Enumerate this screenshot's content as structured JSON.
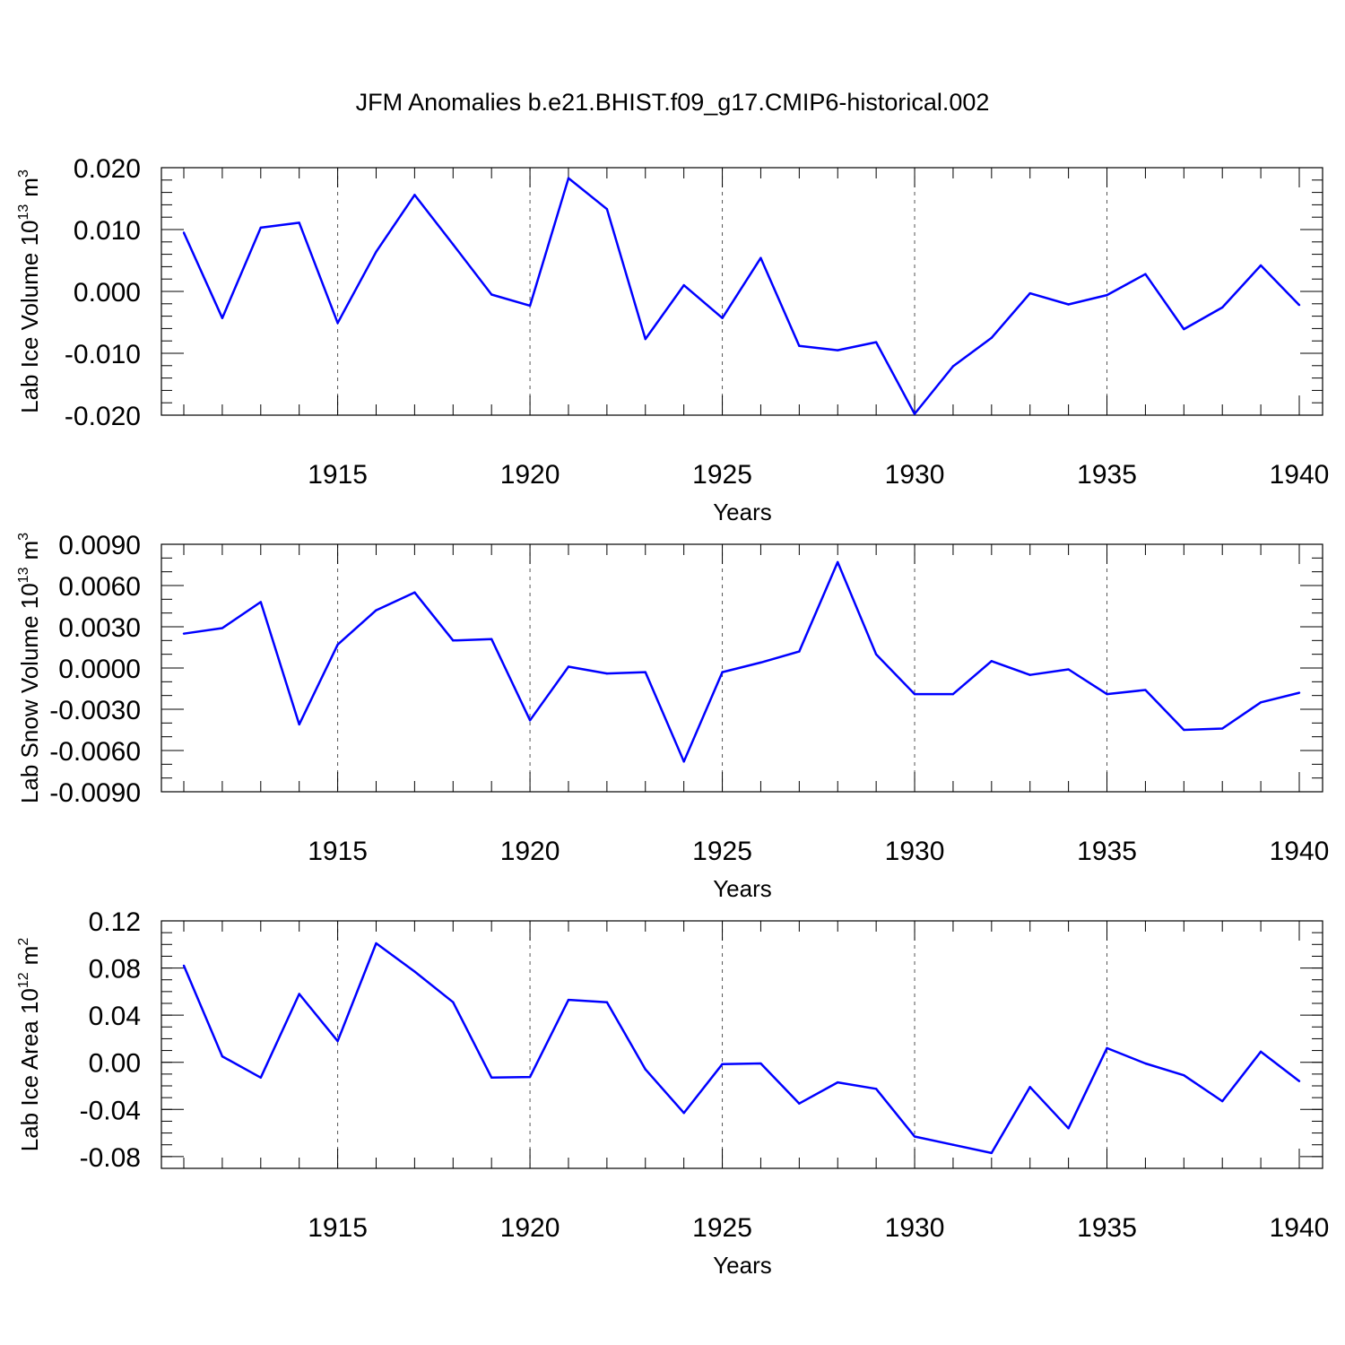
{
  "figure": {
    "title": "JFM Anomalies b.e21.BHIST.f09_g17.CMIP6-historical.002"
  },
  "chart_data": [
    {
      "type": "line",
      "title": "",
      "xlabel": "Years",
      "ylabel": "Lab Ice Volume 10",
      "ylabel_sup": "13",
      "ylabel_unit": "m",
      "ylabel_unit_sup": "3",
      "xlim": [
        1911,
        1940
      ],
      "ylim": [
        -0.02,
        0.02
      ],
      "xticks": [
        1915,
        1920,
        1925,
        1930,
        1935,
        1940
      ],
      "xtick_labels": [
        "1915",
        "1920",
        "1925",
        "1930",
        "1935",
        "1940"
      ],
      "yticks": [
        -0.02,
        -0.01,
        0.0,
        0.01,
        0.02
      ],
      "ytick_labels": [
        "-0.020",
        "-0.010",
        "0.000",
        "0.010",
        "0.020"
      ],
      "y_minor_step": 0.002,
      "grid": "vertical dashed at major x ticks",
      "color": "#0000ff",
      "x": [
        1911,
        1912,
        1913,
        1914,
        1915,
        1916,
        1917,
        1918,
        1919,
        1920,
        1921,
        1922,
        1923,
        1924,
        1925,
        1926,
        1927,
        1928,
        1929,
        1930,
        1931,
        1932,
        1933,
        1934,
        1935,
        1936,
        1937,
        1938,
        1939,
        1940
      ],
      "values": [
        0.0095,
        -0.0043,
        0.0103,
        0.0111,
        -0.0051,
        0.0064,
        0.0156,
        0.0076,
        -0.0005,
        -0.0023,
        0.0183,
        0.0133,
        -0.0077,
        0.001,
        -0.0043,
        0.0054,
        -0.0088,
        -0.0095,
        -0.0082,
        -0.0198,
        -0.0121,
        -0.0075,
        -0.0003,
        -0.0021,
        -0.0006,
        0.0028,
        -0.0061,
        -0.0026,
        0.0042,
        -0.0022
      ]
    },
    {
      "type": "line",
      "title": "",
      "xlabel": "Years",
      "ylabel": "Lab Snow Volume 10",
      "ylabel_sup": "13",
      "ylabel_unit": "m",
      "ylabel_unit_sup": "3",
      "xlim": [
        1911,
        1940
      ],
      "ylim": [
        -0.009,
        0.009
      ],
      "xticks": [
        1915,
        1920,
        1925,
        1930,
        1935,
        1940
      ],
      "xtick_labels": [
        "1915",
        "1920",
        "1925",
        "1930",
        "1935",
        "1940"
      ],
      "yticks": [
        -0.009,
        -0.006,
        -0.003,
        0.0,
        0.003,
        0.006,
        0.009
      ],
      "ytick_labels": [
        "-0.0090",
        "-0.0060",
        "-0.0030",
        "0.0000",
        "0.0030",
        "0.0060",
        "0.0090"
      ],
      "y_minor_step": 0.001,
      "grid": "vertical dashed at major x ticks",
      "color": "#0000ff",
      "x": [
        1911,
        1912,
        1913,
        1914,
        1915,
        1916,
        1917,
        1918,
        1919,
        1920,
        1921,
        1922,
        1923,
        1924,
        1925,
        1926,
        1927,
        1928,
        1929,
        1930,
        1931,
        1932,
        1933,
        1934,
        1935,
        1936,
        1937,
        1938,
        1939,
        1940
      ],
      "values": [
        0.0025,
        0.0029,
        0.0048,
        -0.0041,
        0.0017,
        0.0042,
        0.0055,
        0.002,
        0.0021,
        -0.0038,
        0.0001,
        -0.0004,
        -0.0003,
        -0.0068,
        -0.0003,
        0.0004,
        0.0012,
        0.0077,
        0.001,
        -0.0019,
        -0.0019,
        0.0005,
        -0.0005,
        -0.0001,
        -0.0019,
        -0.0016,
        -0.0045,
        -0.0044,
        -0.0025,
        -0.0018
      ]
    },
    {
      "type": "line",
      "title": "",
      "xlabel": "Years",
      "ylabel": "Lab Ice Area 10",
      "ylabel_sup": "12",
      "ylabel_unit": "m",
      "ylabel_unit_sup": "2",
      "xlim": [
        1911,
        1940
      ],
      "ylim": [
        -0.09,
        0.12
      ],
      "xticks": [
        1915,
        1920,
        1925,
        1930,
        1935,
        1940
      ],
      "xtick_labels": [
        "1915",
        "1920",
        "1925",
        "1930",
        "1935",
        "1940"
      ],
      "yticks": [
        -0.08,
        -0.04,
        0.0,
        0.04,
        0.08,
        0.12
      ],
      "ytick_labels": [
        "-0.08",
        "-0.04",
        "0.00",
        "0.04",
        "0.08",
        "0.12"
      ],
      "y_minor_step": 0.01,
      "grid": "vertical dashed at major x ticks",
      "color": "#0000ff",
      "x": [
        1911,
        1912,
        1913,
        1914,
        1915,
        1916,
        1917,
        1918,
        1919,
        1920,
        1921,
        1922,
        1923,
        1924,
        1925,
        1926,
        1927,
        1928,
        1929,
        1930,
        1931,
        1932,
        1933,
        1934,
        1935,
        1936,
        1937,
        1938,
        1939,
        1940
      ],
      "values": [
        0.082,
        0.005,
        -0.013,
        0.058,
        0.018,
        0.101,
        0.077,
        0.051,
        -0.013,
        -0.0125,
        0.053,
        0.051,
        -0.006,
        -0.043,
        -0.0015,
        -0.001,
        -0.035,
        -0.017,
        -0.0225,
        -0.063,
        -0.07,
        -0.077,
        -0.021,
        -0.056,
        0.012,
        -0.001,
        -0.011,
        -0.033,
        0.009,
        -0.016
      ]
    }
  ]
}
